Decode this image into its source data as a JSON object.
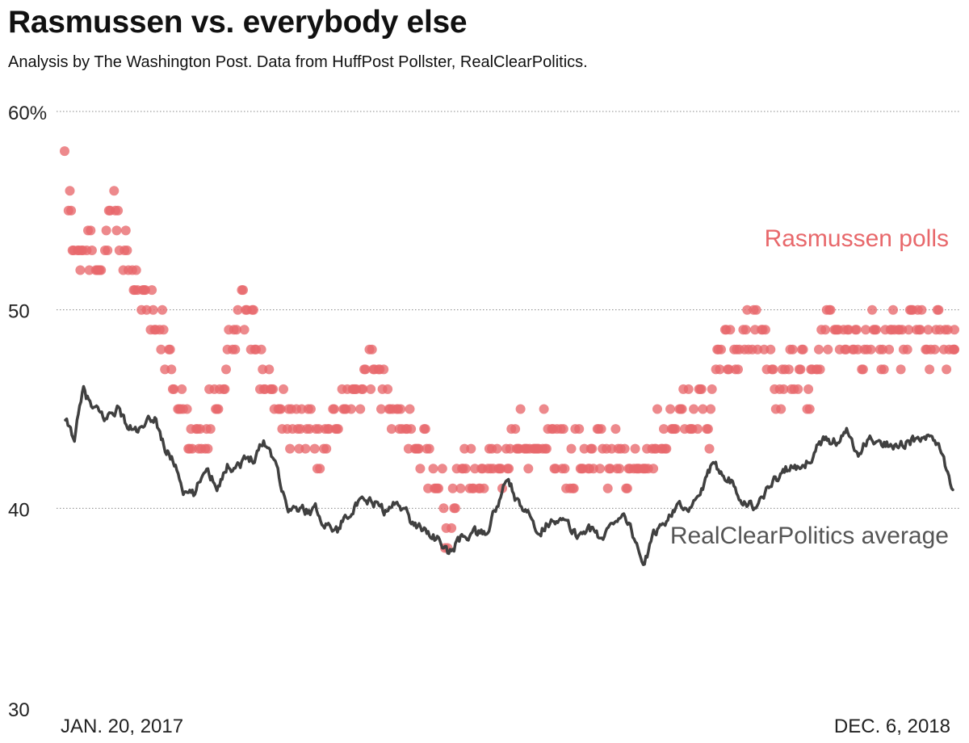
{
  "header": {
    "title": "Rasmussen vs. everybody else",
    "subtitle": "Analysis by The Washington Post. Data from HuffPost Pollster, RealClearPolitics."
  },
  "chart_data": {
    "type": "scatter+line",
    "ylim": [
      30,
      60
    ],
    "y_ticks": [
      {
        "value": 60,
        "label": "60%"
      },
      {
        "value": 50,
        "label": "50"
      },
      {
        "value": 40,
        "label": "40"
      },
      {
        "value": 30,
        "label": "30"
      }
    ],
    "x_range": [
      "2017-01-20",
      "2018-12-06"
    ],
    "x_labels": {
      "start": "JAN. 20, 2017",
      "end": "DEC. 6, 2018"
    },
    "grid": "horizontal-dotted",
    "colors": {
      "rasmussen": "#e8686b",
      "rcp": "#404040",
      "grid": "#888888"
    },
    "series": [
      {
        "name": "Rasmussen polls",
        "kind": "scatter",
        "anchors": [
          [
            "2017-01-20",
            59
          ],
          [
            "2017-01-21",
            57
          ],
          [
            "2017-01-23",
            55
          ],
          [
            "2017-01-26",
            53
          ],
          [
            "2017-01-28",
            51
          ],
          [
            "2017-02-01",
            53
          ],
          [
            "2017-02-05",
            54
          ],
          [
            "2017-02-10",
            53
          ],
          [
            "2017-02-20",
            53
          ],
          [
            "2017-02-27",
            55
          ],
          [
            "2017-03-05",
            53
          ],
          [
            "2017-03-12",
            52
          ],
          [
            "2017-03-20",
            51
          ],
          [
            "2017-03-28",
            50
          ],
          [
            "2017-04-05",
            49
          ],
          [
            "2017-04-12",
            47
          ],
          [
            "2017-04-20",
            45
          ],
          [
            "2017-04-28",
            44
          ],
          [
            "2017-05-05",
            42
          ],
          [
            "2017-05-12",
            45
          ],
          [
            "2017-05-20",
            46
          ],
          [
            "2017-05-28",
            48
          ],
          [
            "2017-06-05",
            50
          ],
          [
            "2017-06-12",
            49
          ],
          [
            "2017-06-20",
            47
          ],
          [
            "2017-06-28",
            46
          ],
          [
            "2017-07-05",
            45
          ],
          [
            "2017-07-12",
            44
          ],
          [
            "2017-07-20",
            44
          ],
          [
            "2017-07-28",
            44
          ],
          [
            "2017-08-05",
            43
          ],
          [
            "2017-08-12",
            44
          ],
          [
            "2017-08-20",
            46
          ],
          [
            "2017-08-28",
            45
          ],
          [
            "2017-09-05",
            46
          ],
          [
            "2017-09-12",
            47
          ],
          [
            "2017-09-20",
            46
          ],
          [
            "2017-09-28",
            45
          ],
          [
            "2017-10-05",
            44
          ],
          [
            "2017-10-12",
            44
          ],
          [
            "2017-10-20",
            43
          ],
          [
            "2017-10-28",
            42
          ],
          [
            "2017-11-05",
            41
          ],
          [
            "2017-11-10",
            38
          ],
          [
            "2017-11-18",
            42
          ],
          [
            "2017-11-26",
            42
          ],
          [
            "2017-12-05",
            41
          ],
          [
            "2017-12-12",
            42
          ],
          [
            "2017-12-20",
            42
          ],
          [
            "2017-12-28",
            43
          ],
          [
            "2018-01-05",
            44
          ],
          [
            "2018-01-12",
            43
          ],
          [
            "2018-01-20",
            44
          ],
          [
            "2018-01-28",
            43
          ],
          [
            "2018-02-05",
            43
          ],
          [
            "2018-02-12",
            42
          ],
          [
            "2018-02-20",
            43
          ],
          [
            "2018-02-28",
            43
          ],
          [
            "2018-03-07",
            43
          ],
          [
            "2018-03-15",
            42
          ],
          [
            "2018-03-22",
            43
          ],
          [
            "2018-03-30",
            42
          ],
          [
            "2018-04-07",
            42
          ],
          [
            "2018-04-14",
            42
          ],
          [
            "2018-04-22",
            44
          ],
          [
            "2018-04-30",
            45
          ],
          [
            "2018-05-07",
            44
          ],
          [
            "2018-05-15",
            45
          ],
          [
            "2018-05-22",
            45
          ],
          [
            "2018-05-30",
            44
          ],
          [
            "2018-06-07",
            48
          ],
          [
            "2018-06-14",
            48
          ],
          [
            "2018-06-22",
            47
          ],
          [
            "2018-06-30",
            49
          ],
          [
            "2018-07-08",
            49
          ],
          [
            "2018-07-15",
            48
          ],
          [
            "2018-07-22",
            45
          ],
          [
            "2018-07-30",
            47
          ],
          [
            "2018-08-06",
            47
          ],
          [
            "2018-08-13",
            46
          ],
          [
            "2018-08-21",
            47
          ],
          [
            "2018-08-28",
            49
          ],
          [
            "2018-09-04",
            50
          ],
          [
            "2018-09-11",
            48
          ],
          [
            "2018-09-18",
            49
          ],
          [
            "2018-09-26",
            48
          ],
          [
            "2018-10-03",
            49
          ],
          [
            "2018-10-10",
            48
          ],
          [
            "2018-10-18",
            49
          ],
          [
            "2018-10-25",
            48
          ],
          [
            "2018-11-01",
            50
          ],
          [
            "2018-11-08",
            49
          ],
          [
            "2018-11-15",
            48
          ],
          [
            "2018-11-22",
            49
          ],
          [
            "2018-11-29",
            48
          ],
          [
            "2018-12-06",
            48
          ]
        ]
      },
      {
        "name": "RealClearPolitics average",
        "kind": "line",
        "anchors": [
          [
            "2017-01-20",
            44.3
          ],
          [
            "2017-01-27",
            43.6
          ],
          [
            "2017-02-03",
            45.9
          ],
          [
            "2017-02-10",
            45.0
          ],
          [
            "2017-02-20",
            44.5
          ],
          [
            "2017-03-01",
            45.1
          ],
          [
            "2017-03-10",
            44.0
          ],
          [
            "2017-03-20",
            43.9
          ],
          [
            "2017-03-30",
            44.6
          ],
          [
            "2017-04-07",
            43.0
          ],
          [
            "2017-04-15",
            42.2
          ],
          [
            "2017-04-22",
            40.8
          ],
          [
            "2017-04-30",
            40.6
          ],
          [
            "2017-05-08",
            42.1
          ],
          [
            "2017-05-17",
            41.2
          ],
          [
            "2017-05-25",
            42.1
          ],
          [
            "2017-06-05",
            42.3
          ],
          [
            "2017-06-14",
            42.6
          ],
          [
            "2017-06-22",
            43.4
          ],
          [
            "2017-07-01",
            42.5
          ],
          [
            "2017-07-10",
            40.0
          ],
          [
            "2017-07-20",
            39.9
          ],
          [
            "2017-08-01",
            39.9
          ],
          [
            "2017-08-10",
            39.2
          ],
          [
            "2017-08-18",
            38.9
          ],
          [
            "2017-08-28",
            40.0
          ],
          [
            "2017-09-06",
            40.2
          ],
          [
            "2017-09-15",
            40.3
          ],
          [
            "2017-09-25",
            39.8
          ],
          [
            "2017-10-05",
            40.4
          ],
          [
            "2017-10-15",
            39.2
          ],
          [
            "2017-10-25",
            39.0
          ],
          [
            "2017-11-03",
            38.4
          ],
          [
            "2017-11-12",
            37.7
          ],
          [
            "2017-11-20",
            38.4
          ],
          [
            "2017-11-30",
            38.8
          ],
          [
            "2017-12-09",
            38.6
          ],
          [
            "2017-12-18",
            39.9
          ],
          [
            "2017-12-28",
            41.5
          ],
          [
            "2018-01-05",
            40.1
          ],
          [
            "2018-01-14",
            39.5
          ],
          [
            "2018-01-22",
            38.9
          ],
          [
            "2018-02-01",
            39.6
          ],
          [
            "2018-02-10",
            39.2
          ],
          [
            "2018-02-19",
            38.6
          ],
          [
            "2018-02-28",
            39.1
          ],
          [
            "2018-03-09",
            38.4
          ],
          [
            "2018-03-18",
            39.2
          ],
          [
            "2018-03-27",
            39.9
          ],
          [
            "2018-04-04",
            38.5
          ],
          [
            "2018-04-12",
            37.2
          ],
          [
            "2018-04-20",
            38.7
          ],
          [
            "2018-04-28",
            39.4
          ],
          [
            "2018-05-07",
            40.3
          ],
          [
            "2018-05-15",
            39.6
          ],
          [
            "2018-05-24",
            40.6
          ],
          [
            "2018-06-02",
            41.9
          ],
          [
            "2018-06-10",
            42.0
          ],
          [
            "2018-06-18",
            41.4
          ],
          [
            "2018-06-27",
            40.5
          ],
          [
            "2018-07-06",
            40.0
          ],
          [
            "2018-07-15",
            40.9
          ],
          [
            "2018-07-24",
            41.6
          ],
          [
            "2018-08-02",
            42.1
          ],
          [
            "2018-08-11",
            41.8
          ],
          [
            "2018-08-20",
            42.8
          ],
          [
            "2018-08-29",
            43.5
          ],
          [
            "2018-09-07",
            43.4
          ],
          [
            "2018-09-15",
            43.8
          ],
          [
            "2018-09-23",
            42.6
          ],
          [
            "2018-10-02",
            43.5
          ],
          [
            "2018-10-10",
            43.2
          ],
          [
            "2018-10-19",
            43.3
          ],
          [
            "2018-10-28",
            43.3
          ],
          [
            "2018-11-06",
            43.4
          ],
          [
            "2018-11-14",
            43.5
          ],
          [
            "2018-11-22",
            43.5
          ],
          [
            "2018-11-30",
            42.1
          ],
          [
            "2018-12-06",
            40.9
          ]
        ]
      }
    ]
  },
  "labels": {
    "rasmussen": "Rasmussen polls",
    "rcp": "RealClearPolitics average"
  }
}
